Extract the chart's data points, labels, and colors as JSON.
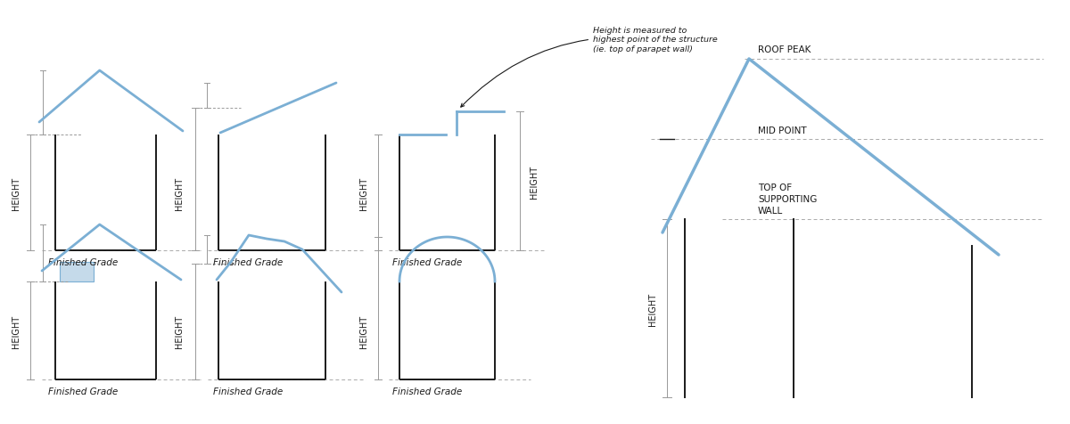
{
  "bg_color": "#ffffff",
  "line_color": "#1a1a1a",
  "blue_color": "#7bafd4",
  "gray_color": "#999999",
  "dashed_color": "#aaaaaa",
  "finished_grade_text": "Finished Grade",
  "height_text": "HEIGHT",
  "roof_peak_text": "ROOF PEAK",
  "mid_point_text": "MID POINT",
  "top_wall_text": "TOP OF\nSUPPORTING\nWALL",
  "annotation_text": "Height is measured to\nhighest point of the structure\n(ie. top of parapet wall)"
}
